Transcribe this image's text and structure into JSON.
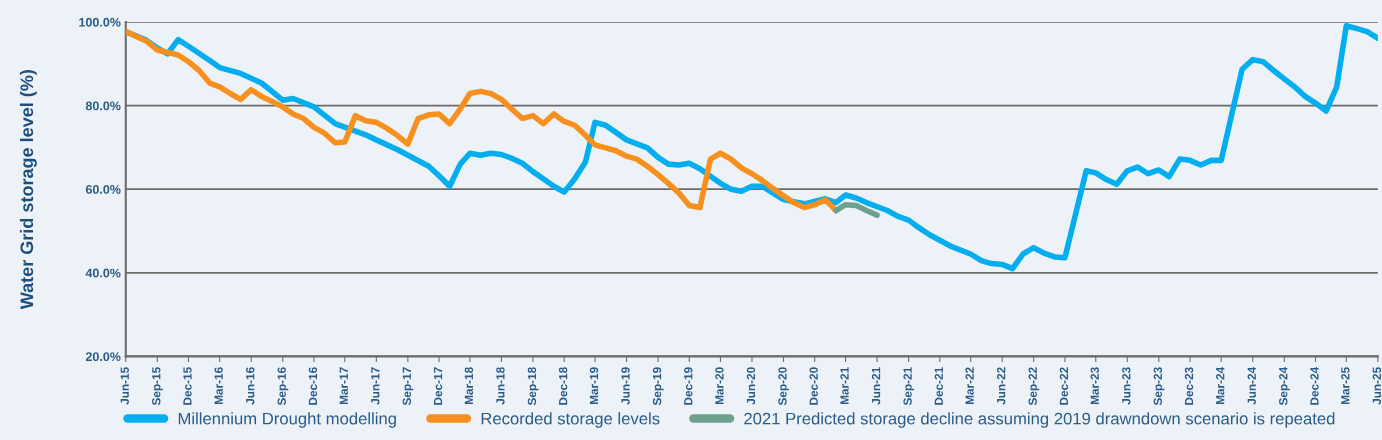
{
  "chart_data": {
    "type": "line",
    "ylabel": "Water Grid storage level (%)",
    "ylim": [
      20,
      100
    ],
    "yticks": [
      {
        "value": 20,
        "label": "20.0%"
      },
      {
        "value": 40,
        "label": "40.0%"
      },
      {
        "value": 60,
        "label": "60.0%"
      },
      {
        "value": 80,
        "label": "80.0%"
      },
      {
        "value": 100,
        "label": "100.0%"
      }
    ],
    "xlim": [
      "2015-06",
      "2025-06"
    ],
    "xticks": [
      {
        "value": "2015-06",
        "label": "Jun-15"
      },
      {
        "value": "2015-09",
        "label": "Sep-15"
      },
      {
        "value": "2015-12",
        "label": "Dec-15"
      },
      {
        "value": "2016-03",
        "label": "Mar-16"
      },
      {
        "value": "2016-06",
        "label": "Jun-16"
      },
      {
        "value": "2016-09",
        "label": "Sep-16"
      },
      {
        "value": "2016-12",
        "label": "Dec-16"
      },
      {
        "value": "2017-03",
        "label": "Mar-17"
      },
      {
        "value": "2017-06",
        "label": "Jun-17"
      },
      {
        "value": "2017-09",
        "label": "Sep-17"
      },
      {
        "value": "2017-12",
        "label": "Dec-17"
      },
      {
        "value": "2018-03",
        "label": "Mar-18"
      },
      {
        "value": "2018-06",
        "label": "Jun-18"
      },
      {
        "value": "2018-09",
        "label": "Sep-18"
      },
      {
        "value": "2018-12",
        "label": "Dec-18"
      },
      {
        "value": "2019-03",
        "label": "Mar-19"
      },
      {
        "value": "2019-06",
        "label": "Jun-19"
      },
      {
        "value": "2019-09",
        "label": "Sep-19"
      },
      {
        "value": "2019-12",
        "label": "Dec-19"
      },
      {
        "value": "2020-03",
        "label": "Mar-20"
      },
      {
        "value": "2020-06",
        "label": "Jun-20"
      },
      {
        "value": "2020-09",
        "label": "Sep-20"
      },
      {
        "value": "2020-12",
        "label": "Dec-20"
      },
      {
        "value": "2021-03",
        "label": "Mar-21"
      },
      {
        "value": "2021-06",
        "label": "Jun-21"
      },
      {
        "value": "2021-09",
        "label": "Sep-21"
      },
      {
        "value": "2021-12",
        "label": "Dec-21"
      },
      {
        "value": "2022-03",
        "label": "Mar-22"
      },
      {
        "value": "2022-06",
        "label": "Jun-22"
      },
      {
        "value": "2022-09",
        "label": "Sep-22"
      },
      {
        "value": "2022-12",
        "label": "Dec-22"
      },
      {
        "value": "2023-03",
        "label": "Mar-23"
      },
      {
        "value": "2023-06",
        "label": "Jun-23"
      },
      {
        "value": "2023-09",
        "label": "Sep-23"
      },
      {
        "value": "2023-12",
        "label": "Dec-23"
      },
      {
        "value": "2024-03",
        "label": "Mar-24"
      },
      {
        "value": "2024-06",
        "label": "Jun-24"
      },
      {
        "value": "2024-09",
        "label": "Sep-24"
      },
      {
        "value": "2024-12",
        "label": "Dec-24"
      },
      {
        "value": "2025-03",
        "label": "Mar-25"
      },
      {
        "value": "2025-06",
        "label": "Jun-25"
      }
    ],
    "grid": "y",
    "legend": "bottom",
    "line_style": "solid",
    "marker": "none",
    "series": [
      {
        "name": "Millennium Drought modelling",
        "color": "#00aeef",
        "x": [
          "2015-06",
          "2015-08",
          "2015-09",
          "2015-10",
          "2015-11",
          "2015-12",
          "2016-02",
          "2016-03",
          "2016-05",
          "2016-07",
          "2016-09",
          "2016-10",
          "2016-12",
          "2017-02",
          "2017-05",
          "2017-06",
          "2017-08",
          "2017-11",
          "2017-12",
          "2018-01",
          "2018-02",
          "2018-03",
          "2018-04",
          "2018-05",
          "2018-06",
          "2018-07",
          "2018-08",
          "2018-09",
          "2018-10",
          "2018-11",
          "2018-12",
          "2019-01",
          "2019-02",
          "2019-03",
          "2019-04",
          "2019-05",
          "2019-06",
          "2019-08",
          "2019-09",
          "2019-10",
          "2019-11",
          "2019-12",
          "2020-01",
          "2020-03",
          "2020-04",
          "2020-05",
          "2020-06",
          "2020-07",
          "2020-09",
          "2020-11",
          "2021-01",
          "2021-02",
          "2021-03",
          "2021-04",
          "2021-05",
          "2021-07",
          "2021-08",
          "2021-09",
          "2021-10",
          "2021-11",
          "2022-01",
          "2022-03",
          "2022-04",
          "2022-05",
          "2022-06",
          "2022-07",
          "2022-08",
          "2022-09",
          "2022-10",
          "2022-11",
          "2022-12",
          "2023-02",
          "2023-03",
          "2023-04",
          "2023-05",
          "2023-06",
          "2023-07",
          "2023-08",
          "2023-09",
          "2023-10",
          "2023-11",
          "2023-12",
          "2024-01",
          "2024-02",
          "2024-03",
          "2024-05",
          "2024-06",
          "2024-07",
          "2024-08",
          "2024-09",
          "2024-10",
          "2024-11",
          "2024-12",
          "2025-01",
          "2025-02",
          "2025-03",
          "2025-04",
          "2025-05",
          "2025-06"
        ],
        "values": [
          97.7,
          95.6,
          93.8,
          92.4,
          95.8,
          94.2,
          90.8,
          89.1,
          87.7,
          85.4,
          81.3,
          81.7,
          79.7,
          75.7,
          73.0,
          71.8,
          69.5,
          65.5,
          63.2,
          60.7,
          66.0,
          68.6,
          68.1,
          68.6,
          68.3,
          67.4,
          66.2,
          64.2,
          62.5,
          60.7,
          59.3,
          62.5,
          66.5,
          76.0,
          75.3,
          73.6,
          71.8,
          69.9,
          67.6,
          66.0,
          65.8,
          66.2,
          64.9,
          61.4,
          60.0,
          59.5,
          60.7,
          60.7,
          57.5,
          56.5,
          57.7,
          56.8,
          58.6,
          57.9,
          56.8,
          54.9,
          53.5,
          52.6,
          50.8,
          49.1,
          46.4,
          44.5,
          42.9,
          42.2,
          42.0,
          41.0,
          44.5,
          46.0,
          44.7,
          43.8,
          43.6,
          64.4,
          63.9,
          62.3,
          61.2,
          64.4,
          65.3,
          63.7,
          64.6,
          63.0,
          67.2,
          66.9,
          65.8,
          66.9,
          66.9,
          88.7,
          91.0,
          90.5,
          88.4,
          86.4,
          84.5,
          82.2,
          80.6,
          78.7,
          84.5,
          99.1,
          98.4,
          97.7,
          96.1
        ]
      },
      {
        "name": "Recorded storage levels",
        "color": "#f7901e",
        "x": [
          "2015-06",
          "2015-08",
          "2015-09",
          "2015-11",
          "2015-12",
          "2016-01",
          "2016-02",
          "2016-03",
          "2016-04",
          "2016-05",
          "2016-06",
          "2016-07",
          "2016-08",
          "2016-09",
          "2016-10",
          "2016-11",
          "2016-12",
          "2017-01",
          "2017-02",
          "2017-03",
          "2017-04",
          "2017-05",
          "2017-06",
          "2017-07",
          "2017-08",
          "2017-09",
          "2017-10",
          "2017-11",
          "2017-12",
          "2018-01",
          "2018-02",
          "2018-03",
          "2018-04",
          "2018-05",
          "2018-06",
          "2018-07",
          "2018-08",
          "2018-09",
          "2018-10",
          "2018-11",
          "2018-12",
          "2019-01",
          "2019-02",
          "2019-03",
          "2019-04",
          "2019-05",
          "2019-06",
          "2019-07",
          "2019-08",
          "2019-09",
          "2019-10",
          "2019-11",
          "2019-12",
          "2020-01",
          "2020-02",
          "2020-03",
          "2020-04",
          "2020-05",
          "2020-06",
          "2020-07",
          "2020-08",
          "2020-09",
          "2020-10",
          "2020-11",
          "2020-12",
          "2021-01",
          "2021-02"
        ],
        "values": [
          97.7,
          95.4,
          93.3,
          92.1,
          90.5,
          88.4,
          85.4,
          84.5,
          82.9,
          81.5,
          83.8,
          82.2,
          81.0,
          79.7,
          78.0,
          76.9,
          74.8,
          73.4,
          71.1,
          71.3,
          77.6,
          76.4,
          76.0,
          74.6,
          72.9,
          70.8,
          76.9,
          77.8,
          78.0,
          75.7,
          79.2,
          82.9,
          83.4,
          82.9,
          81.5,
          79.2,
          76.9,
          77.6,
          75.7,
          78.0,
          76.2,
          75.3,
          72.9,
          70.6,
          69.9,
          69.2,
          67.9,
          67.2,
          65.5,
          63.5,
          61.4,
          59.1,
          56.1,
          55.6,
          67.2,
          68.6,
          67.2,
          65.1,
          63.7,
          62.1,
          60.2,
          58.4,
          56.8,
          55.6,
          56.3,
          57.5,
          54.9
        ]
      },
      {
        "name": "2021 Predicted storage decline assuming 2019 drawndown scenario is repeated",
        "color": "#6fa08c",
        "x": [
          "2021-02",
          "2021-03",
          "2021-04",
          "2021-05",
          "2021-06"
        ],
        "values": [
          54.9,
          56.3,
          56.1,
          54.9,
          53.8
        ]
      }
    ]
  }
}
